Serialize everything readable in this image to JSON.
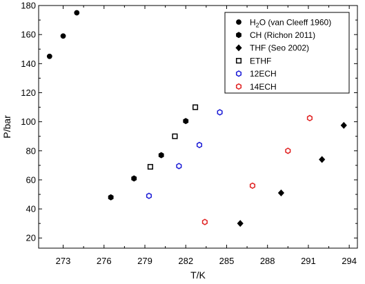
{
  "chart_data": {
    "type": "scatter",
    "xlabel": "T/K",
    "ylabel": "P/bar",
    "xlim": [
      271.2,
      294.6
    ],
    "ylim": [
      13,
      180
    ],
    "xticks": [
      273,
      276,
      279,
      282,
      285,
      288,
      291,
      294
    ],
    "yticks": [
      20,
      40,
      60,
      80,
      100,
      120,
      140,
      160,
      180
    ],
    "grid": false,
    "legend_position": "top-right",
    "series": [
      {
        "name": "H2O (van Cleeff 1960)",
        "legend_main": "H",
        "legend_sub": "2",
        "legend_rest": "O (van Cleeff 1960)",
        "marker": "circle-filled",
        "color": "#000000",
        "points": [
          [
            272.0,
            145.0
          ],
          [
            273.0,
            159.0
          ],
          [
            274.0,
            175.0
          ]
        ]
      },
      {
        "name": "CH (Richon 2011)",
        "marker": "hexagon-filled",
        "color": "#000000",
        "points": [
          [
            276.5,
            48.0
          ],
          [
            278.2,
            61.0
          ],
          [
            280.2,
            77.0
          ],
          [
            282.0,
            100.5
          ]
        ]
      },
      {
        "name": "THF (Seo 2002)",
        "marker": "diamond-filled",
        "color": "#000000",
        "points": [
          [
            286.0,
            30.0
          ],
          [
            289.0,
            51.0
          ],
          [
            292.0,
            74.0
          ],
          [
            293.6,
            97.5
          ]
        ]
      },
      {
        "name": "ETHF",
        "marker": "square-open",
        "color": "#000000",
        "points": [
          [
            279.4,
            69.0
          ],
          [
            281.2,
            90.0
          ],
          [
            282.7,
            110.0
          ]
        ]
      },
      {
        "name": "12ECH",
        "marker": "hexagon-open",
        "color": "#1a1ad6",
        "points": [
          [
            279.3,
            49.0
          ],
          [
            281.5,
            69.5
          ],
          [
            283.0,
            84.0
          ],
          [
            284.5,
            106.5
          ]
        ]
      },
      {
        "name": "14ECH",
        "marker": "hexagon-open",
        "color": "#e02020",
        "points": [
          [
            283.4,
            31.0
          ],
          [
            286.9,
            56.0
          ],
          [
            289.5,
            80.0
          ],
          [
            291.1,
            102.5
          ]
        ]
      }
    ]
  }
}
